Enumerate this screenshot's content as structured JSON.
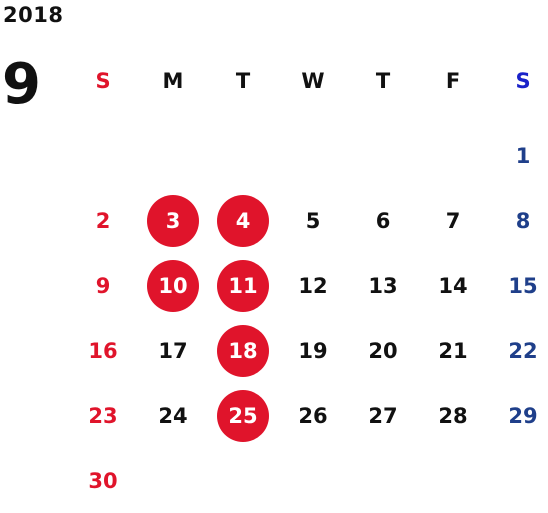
{
  "year": "2018",
  "month": "9",
  "weekday_headers": [
    "S",
    "M",
    "T",
    "W",
    "T",
    "F",
    "S"
  ],
  "colors": {
    "sunday": "#e0142b",
    "saturday_header": "#1a22c9",
    "saturday": "#1f3f8a",
    "weekday": "#111111",
    "highlight_fill": "#e0142b",
    "highlight_text": "#ffffff"
  },
  "weeks": [
    [
      null,
      null,
      null,
      null,
      null,
      null,
      "1"
    ],
    [
      "2",
      "3",
      "4",
      "5",
      "6",
      "7",
      "8"
    ],
    [
      "9",
      "10",
      "11",
      "12",
      "13",
      "14",
      "15"
    ],
    [
      "16",
      "17",
      "18",
      "19",
      "20",
      "21",
      "22"
    ],
    [
      "23",
      "24",
      "25",
      "26",
      "27",
      "28",
      "29"
    ],
    [
      "30",
      null,
      null,
      null,
      null,
      null,
      null
    ]
  ],
  "highlighted_days": [
    "3",
    "4",
    "10",
    "11",
    "18",
    "25"
  ]
}
